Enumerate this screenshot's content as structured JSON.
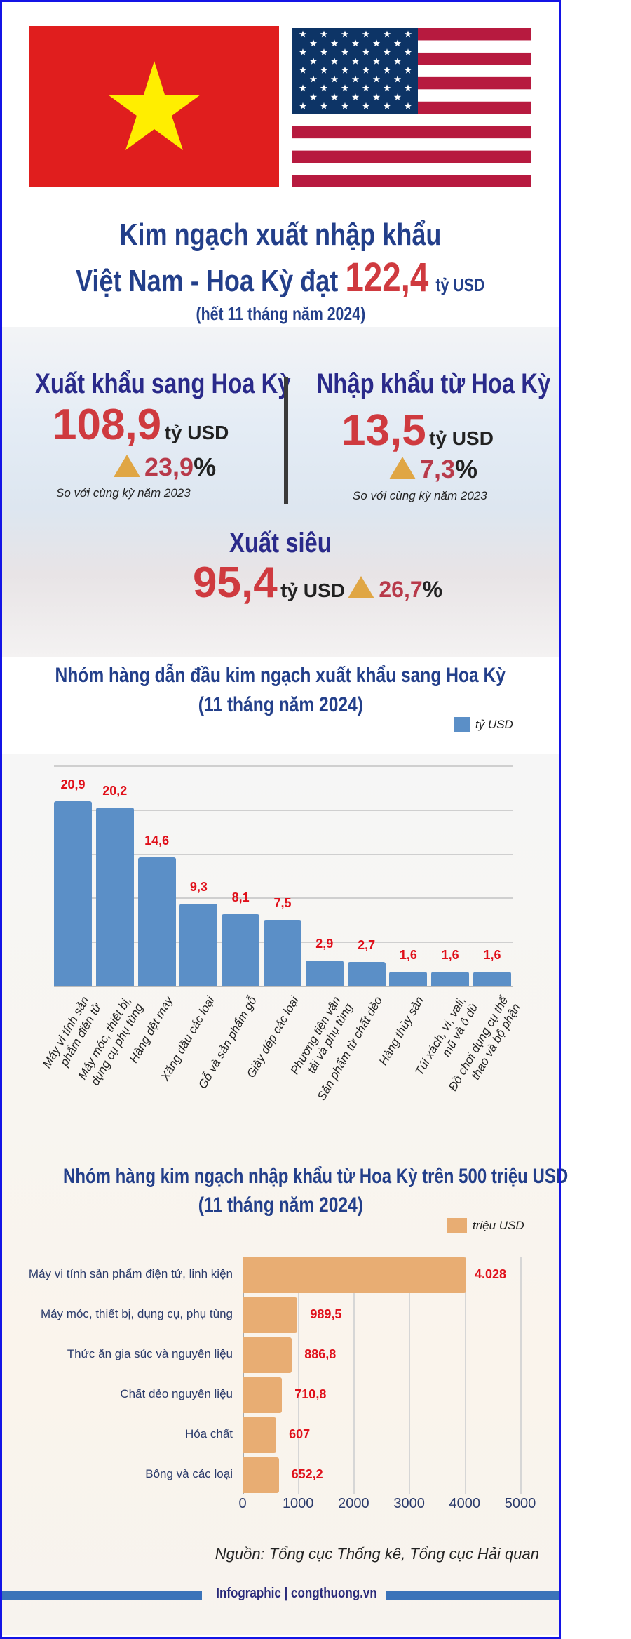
{
  "header": {
    "title_line1": "Kim ngạch xuất nhập khẩu",
    "title_line2_prefix": "Việt Nam - Hoa Kỳ đạt",
    "total_value": "122,4",
    "total_unit": "tỷ USD",
    "period": "(hết 11 tháng năm 2024)"
  },
  "flags": {
    "left": "vietnam-flag",
    "right": "usa-flag",
    "colors": {
      "vn_red": "#e01e1e",
      "vn_star": "#ffee00",
      "us_red": "#b71a3f",
      "us_blue": "#0d3466"
    }
  },
  "summary": {
    "export": {
      "heading": "Xuất khẩu sang Hoa Kỳ",
      "value": "108,9",
      "unit": "tỷ USD",
      "change": "23,9",
      "pct": "%",
      "compare": "So với cùng kỳ năm 2023"
    },
    "import": {
      "heading": "Nhập khẩu từ Hoa Kỳ",
      "value": "13,5",
      "unit": "tỷ USD",
      "change": "7,3",
      "pct": "%",
      "compare": "So với cùng kỳ năm 2023"
    },
    "surplus": {
      "heading": "Xuất siêu",
      "value": "95,4",
      "unit": "tỷ USD",
      "change": "26,7",
      "pct": "%"
    }
  },
  "chart_data": [
    {
      "type": "bar",
      "title": "Nhóm hàng dẫn đầu kim ngạch xuất khẩu sang Hoa Kỳ",
      "subtitle": "(11 tháng năm 2024)",
      "legend": "tỷ USD",
      "legend_placement": "top-right",
      "color": "#5b8fc7",
      "grid": true,
      "ylim": [
        0,
        25
      ],
      "categories": [
        [
          "Máy vi tính sản",
          "phẩm điện tử"
        ],
        [
          "Máy móc, thiết bị,",
          "dụng cụ phụ tùng"
        ],
        [
          "Hàng dệt may"
        ],
        [
          "Xăng dầu các loại"
        ],
        [
          "Gỗ và sản phẩm gỗ"
        ],
        [
          "Giày dép các loại"
        ],
        [
          "Phương tiện vận",
          "tải và phụ tùng"
        ],
        [
          "Sản phẩm từ chất dẻo"
        ],
        [
          "Hàng thủy sản"
        ],
        [
          "Túi xách, ví, vali,",
          "mũ và ô dù"
        ],
        [
          "Đồ chơi dụng cụ thể",
          "thao và bộ phận"
        ]
      ],
      "values": [
        20.9,
        20.2,
        14.6,
        9.3,
        8.1,
        7.5,
        2.9,
        2.7,
        1.6,
        1.6,
        1.6
      ],
      "labels": [
        "20,9",
        "20,2",
        "14,6",
        "9,3",
        "8,1",
        "7,5",
        "2,9",
        "2,7",
        "1,6",
        "1,6",
        "1,6"
      ]
    },
    {
      "type": "bar",
      "orientation": "horizontal",
      "title": "Nhóm hàng kim ngạch nhập khẩu từ Hoa Kỳ trên 500 triệu USD",
      "subtitle": "(11 tháng năm 2024)",
      "legend": "triệu USD",
      "legend_placement": "top-right",
      "color": "#e8ad73",
      "grid": true,
      "xlim": [
        0,
        5000
      ],
      "xticks": [
        "0",
        "1000",
        "2000",
        "3000",
        "4000",
        "5000"
      ],
      "categories": [
        "Máy vi tính sản phẩm điện tử, linh kiện",
        "Máy móc, thiết bị, dụng cụ, phụ tùng",
        "Thức ăn gia súc và nguyên liệu",
        "Chất dẻo nguyên liệu",
        "Hóa chất",
        "Bông và các loại"
      ],
      "values": [
        4028,
        989.5,
        886.8,
        710.8,
        607,
        652.2
      ],
      "labels": [
        "4.028",
        "989,5",
        "886,8",
        "710,8",
        "607",
        "652,2"
      ]
    }
  ],
  "source": "Nguồn: Tổng cục Thống kê, Tổng cục Hải quan",
  "footer": "Infographic | congthuong.vn"
}
